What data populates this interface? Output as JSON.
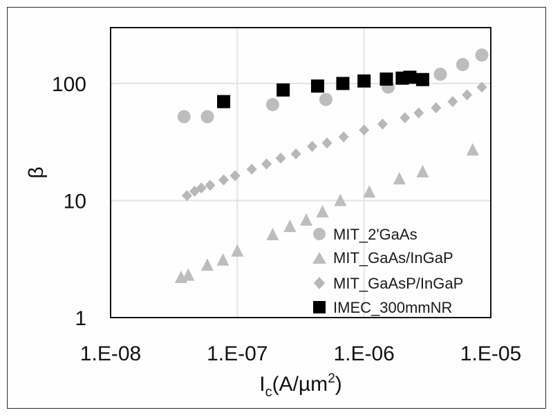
{
  "chart_data": {
    "type": "scatter",
    "xlabel_main": "I",
    "xlabel_sub": "c",
    "xlabel_units": "(A/µm",
    "xlabel_sup": "2",
    "xlabel_close": ")",
    "ylabel": "β",
    "xscale": "log",
    "yscale": "log",
    "xlim": [
      1e-08,
      1e-05
    ],
    "ylim": [
      1,
      300
    ],
    "xticks": [
      1e-08,
      1e-07,
      1e-06,
      1e-05
    ],
    "xtick_labels": [
      "1.E-08",
      "1.E-07",
      "1.E-06",
      "1.E-05"
    ],
    "yticks": [
      1,
      10,
      100
    ],
    "ytick_labels": [
      "1",
      "10",
      "100"
    ],
    "grid": true,
    "legend_position": "lower-right",
    "series": [
      {
        "name": "MIT_2'GaAs",
        "marker": "circle",
        "color": "#bdbdbd",
        "x": [
          3.8e-08,
          5.8e-08,
          1.9e-07,
          5e-07,
          1.55e-06,
          4e-06,
          6e-06,
          8.5e-06
        ],
        "y": [
          52,
          52,
          66,
          73,
          93,
          120,
          145,
          175
        ]
      },
      {
        "name": "MIT_GaAs/InGaP",
        "marker": "triangle",
        "color": "#bdbdbd",
        "x": [
          3.6e-08,
          4.1e-08,
          5.8e-08,
          7.7e-08,
          1e-07,
          1.9e-07,
          2.6e-07,
          3.5e-07,
          4.7e-07,
          6.5e-07,
          1.1e-06,
          1.9e-06,
          2.9e-06,
          7.2e-06
        ],
        "y": [
          2.2,
          2.3,
          2.8,
          3.1,
          3.7,
          5.1,
          6.0,
          6.8,
          8.0,
          10.0,
          11.8,
          15.3,
          17.6,
          27
        ]
      },
      {
        "name": "MIT_GaAsP/InGaP",
        "marker": "diamond",
        "color": "#b8b8b8",
        "x": [
          4e-08,
          4.6e-08,
          5.2e-08,
          6.1e-08,
          7.8e-08,
          9.6e-08,
          1.3e-07,
          1.7e-07,
          2.2e-07,
          2.9e-07,
          3.9e-07,
          5.1e-07,
          6.9e-07,
          1e-06,
          1.4e-06,
          2.1e-06,
          2.7e-06,
          3.7e-06,
          5e-06,
          6.5e-06,
          8.5e-06
        ],
        "y": [
          11,
          12,
          12.8,
          13.5,
          15,
          16.3,
          18.5,
          20.5,
          23,
          25,
          29,
          31,
          35,
          40,
          45,
          51,
          56,
          62,
          70,
          80,
          93
        ]
      },
      {
        "name": "IMEC_300mmNR",
        "marker": "square",
        "color": "#000000",
        "x": [
          7.8e-08,
          2.3e-07,
          4.3e-07,
          6.8e-07,
          1e-06,
          1.5e-06,
          2e-06,
          2.3e-06,
          2.9e-06
        ],
        "y": [
          70,
          88,
          95,
          100,
          105,
          109,
          111,
          113,
          108
        ]
      }
    ]
  }
}
